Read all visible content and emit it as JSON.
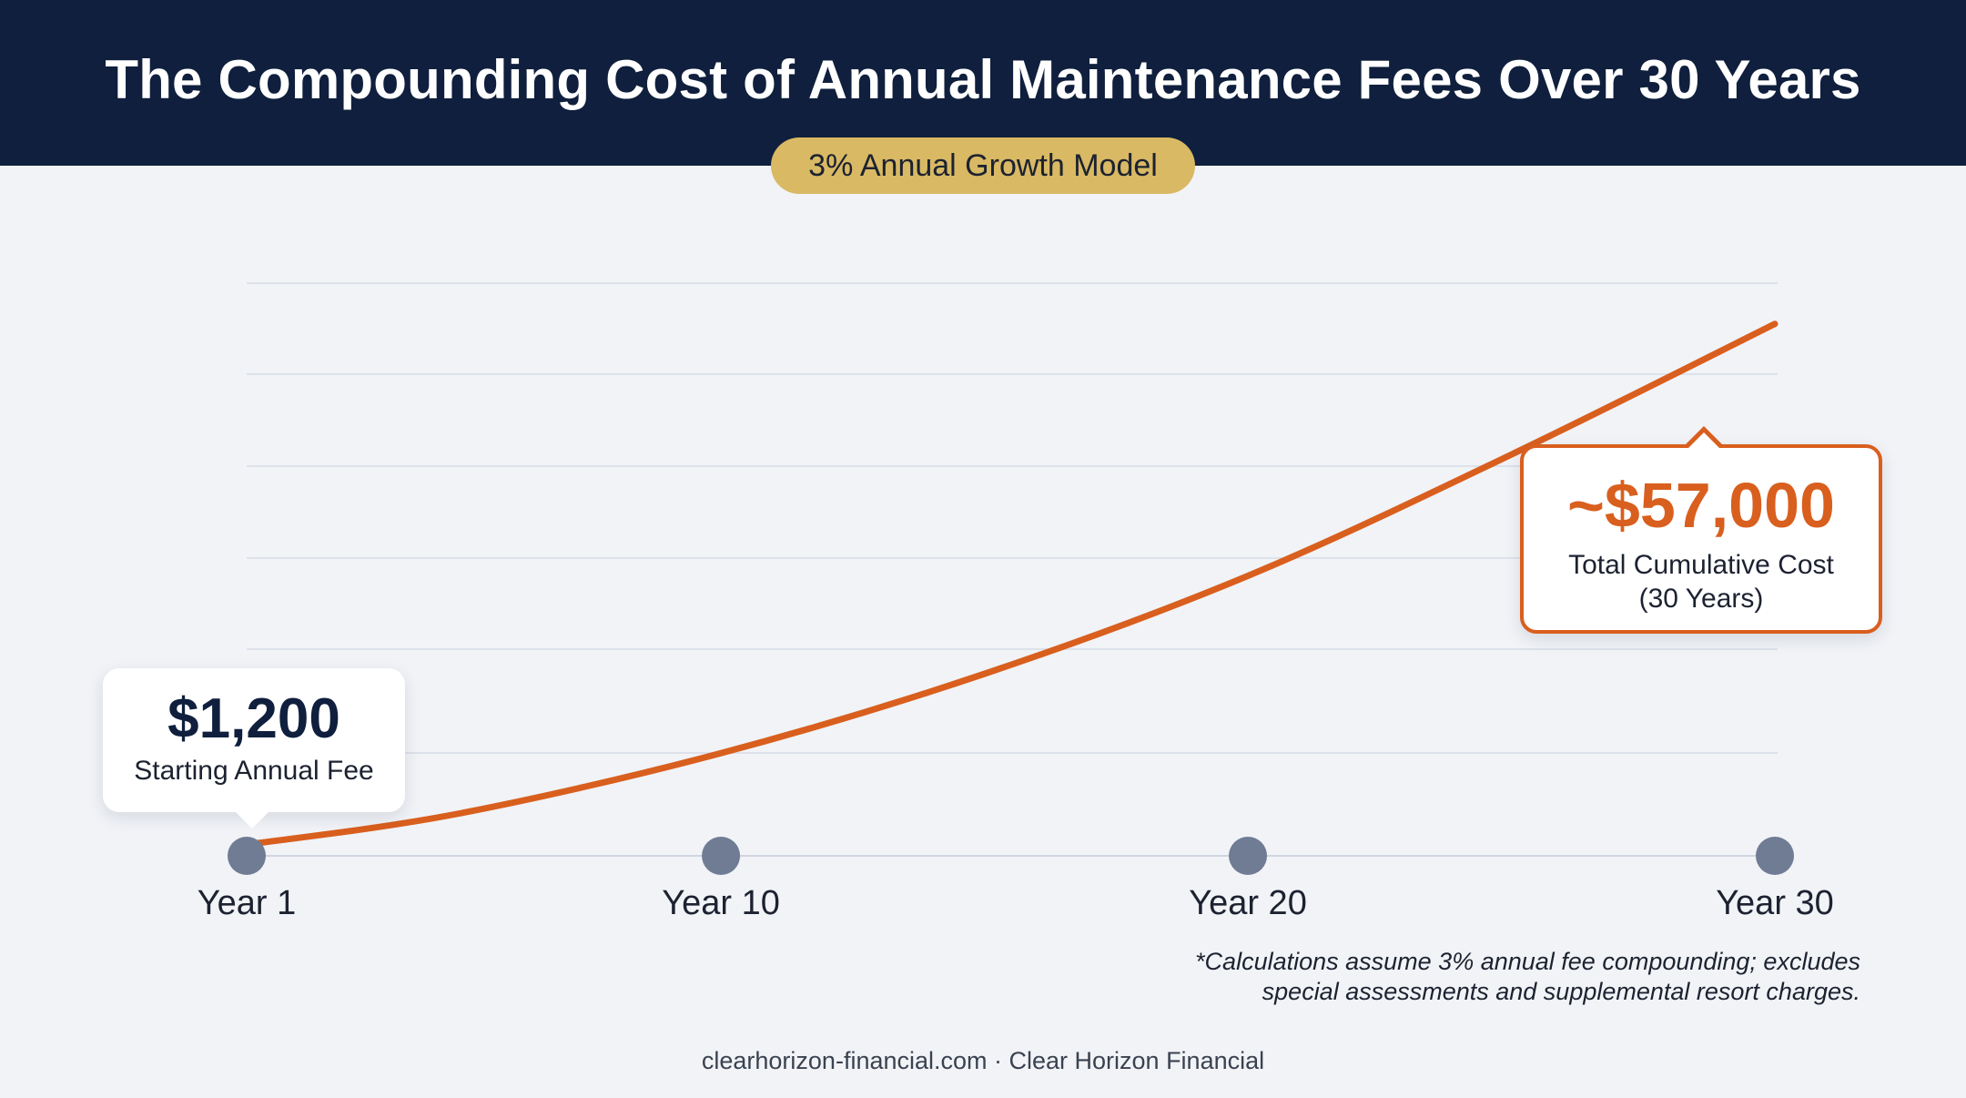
{
  "header": {
    "title": "The Compounding Cost of Annual Maintenance Fees Over 30 Years",
    "badge": "3% Annual Growth Model"
  },
  "chart_data": {
    "type": "line",
    "title": "The Compounding Cost of Annual Maintenance Fees Over 30 Years",
    "xlabel": "",
    "ylabel": "",
    "x_ticks": [
      "Year 1",
      "Year 10",
      "Year 20",
      "Year 30"
    ],
    "x_tick_values": [
      1,
      10,
      20,
      30
    ],
    "xlim": [
      1,
      30
    ],
    "ylim": [
      0,
      60000
    ],
    "grid": true,
    "series": [
      {
        "color": "#d95f1e",
        "x": [
          1,
          5,
          10,
          15,
          20,
          25,
          30
        ],
        "y": [
          1200,
          4500,
          11000,
          19500,
          30000,
          43000,
          57000
        ]
      }
    ],
    "annotations": [
      {
        "value": "$1,200",
        "text": "Starting Annual Fee"
      },
      {
        "value": "~$57,000",
        "text_line1": "Total Cumulative Cost",
        "text_line2": "(30 Years)"
      }
    ]
  },
  "footnote": {
    "line1": "*Calculations assume 3% annual fee compounding; excludes",
    "line2": "special assessments and supplemental resort charges."
  },
  "footer": {
    "text": "clearhorizon-financial.com · Clear Horizon Financial"
  },
  "colors": {
    "navy": "#0f1f3d",
    "gold": "#d9b964",
    "orange": "#d95f1e",
    "marker": "#6f7c94"
  }
}
